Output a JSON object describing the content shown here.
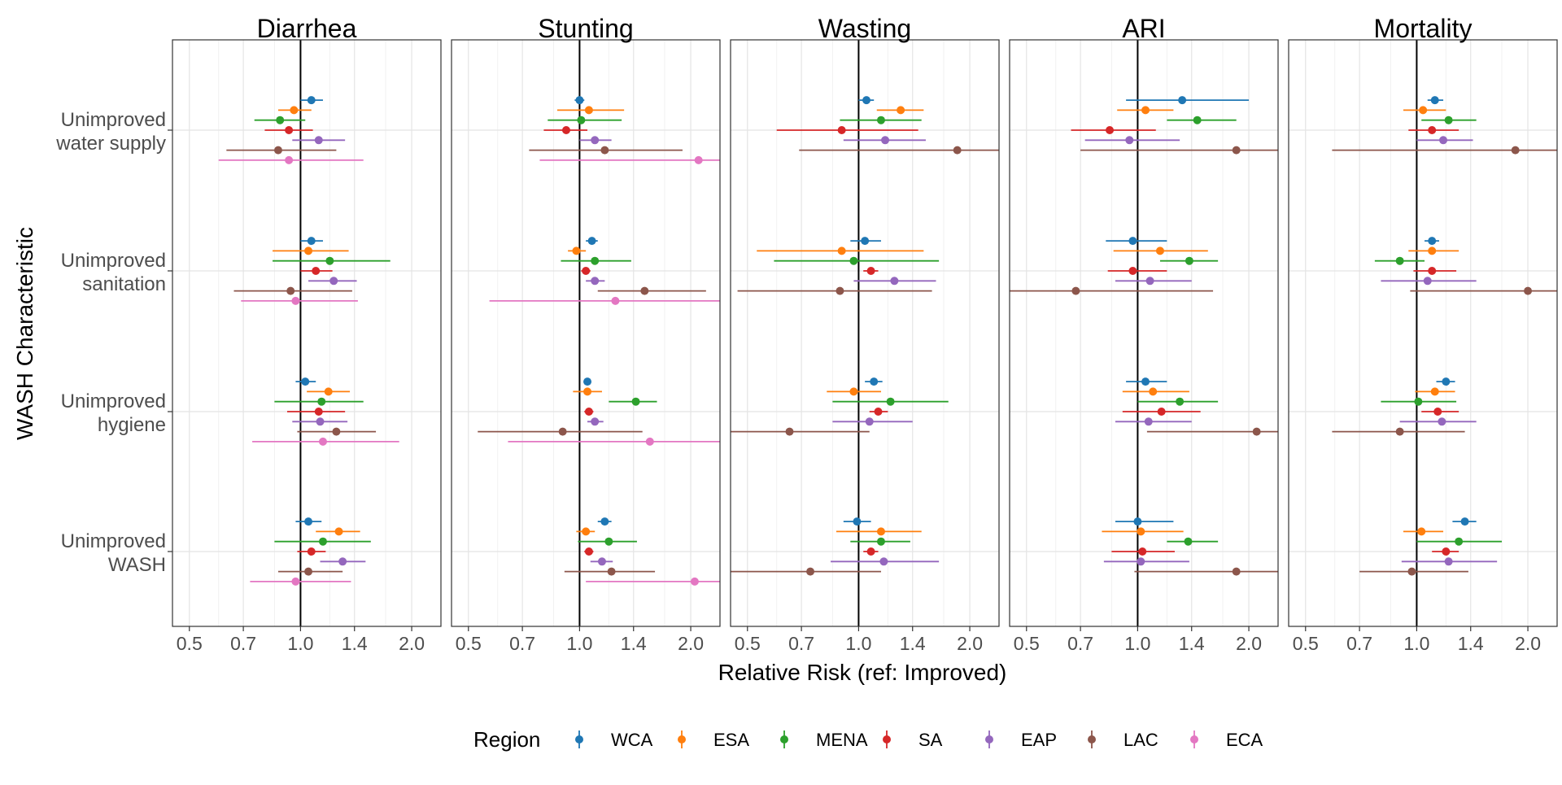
{
  "chart_data": {
    "type": "scatter",
    "subtype": "forest-plot-faceted",
    "xlabel": "Relative Risk (ref: Improved)",
    "ylabel": "WASH Characteristic",
    "x_scale": "log",
    "xlim": [
      0.45,
      2.4
    ],
    "x_ticks": [
      0.5,
      0.7,
      1.0,
      1.4,
      2.0
    ],
    "x_tick_labels": [
      "0.5",
      "0.7",
      "1.0",
      "1.4",
      "2.0"
    ],
    "reference_line": 1.0,
    "grid": true,
    "panels": [
      "Diarrhea",
      "Stunting",
      "Wasting",
      "ARI",
      "Mortality"
    ],
    "characteristics": [
      "Unimproved\nwater supply",
      "Unimproved\nsanitation",
      "Unimproved\nhygiene",
      "Unimproved\nWASH"
    ],
    "legend": {
      "title": "Region",
      "position": "bottom",
      "entries": [
        "WCA",
        "ESA",
        "MENA",
        "SA",
        "EAP",
        "LAC",
        "ECA"
      ]
    },
    "colors": {
      "WCA": "#1f77b4",
      "ESA": "#ff7f0e",
      "MENA": "#2ca02c",
      "SA": "#d62728",
      "EAP": "#9467bd",
      "LAC": "#8c564b",
      "ECA": "#e377c2"
    },
    "data": {
      "Diarrhea": [
        [
          [
            1.07,
            1.0,
            1.15
          ],
          [
            0.96,
            0.87,
            1.07
          ],
          [
            0.88,
            0.75,
            1.03
          ],
          [
            0.93,
            0.8,
            1.08
          ],
          [
            1.12,
            0.95,
            1.32
          ],
          [
            0.87,
            0.63,
            1.25
          ],
          [
            0.93,
            0.6,
            1.48
          ]
        ],
        [
          [
            1.07,
            1.0,
            1.15
          ],
          [
            1.05,
            0.84,
            1.35
          ],
          [
            1.2,
            0.84,
            1.75
          ],
          [
            1.1,
            1.0,
            1.22
          ],
          [
            1.23,
            1.05,
            1.42
          ],
          [
            0.94,
            0.66,
            1.38
          ],
          [
            0.97,
            0.69,
            1.43
          ]
        ],
        [
          [
            1.03,
            0.97,
            1.1
          ],
          [
            1.19,
            1.04,
            1.36
          ],
          [
            1.14,
            0.85,
            1.48
          ],
          [
            1.12,
            0.92,
            1.32
          ],
          [
            1.13,
            0.95,
            1.34
          ],
          [
            1.25,
            0.98,
            1.6
          ],
          [
            1.15,
            0.74,
            1.85
          ]
        ],
        [
          [
            1.05,
            0.97,
            1.14
          ],
          [
            1.27,
            1.1,
            1.45
          ],
          [
            1.15,
            0.85,
            1.55
          ],
          [
            1.07,
            0.98,
            1.17
          ],
          [
            1.3,
            1.13,
            1.5
          ],
          [
            1.05,
            0.87,
            1.3
          ],
          [
            0.97,
            0.73,
            1.37
          ]
        ]
      ],
      "Stunting": [
        [
          [
            1.0,
            0.97,
            1.03
          ],
          [
            1.06,
            0.87,
            1.32
          ],
          [
            1.01,
            0.82,
            1.3
          ],
          [
            0.92,
            0.8,
            1.05
          ],
          [
            1.1,
            1.0,
            1.22
          ],
          [
            1.17,
            0.73,
            1.9
          ],
          [
            2.1,
            0.78,
            2.4
          ]
        ],
        [
          [
            1.08,
            1.04,
            1.12
          ],
          [
            0.98,
            0.93,
            1.04
          ],
          [
            1.1,
            0.89,
            1.38
          ],
          [
            1.04,
            1.01,
            1.07
          ],
          [
            1.1,
            1.04,
            1.17
          ],
          [
            1.5,
            1.12,
            2.2
          ],
          [
            1.25,
            0.57,
            2.4
          ]
        ],
        [
          [
            1.05,
            1.03,
            1.07
          ],
          [
            1.05,
            0.96,
            1.15
          ],
          [
            1.42,
            1.2,
            1.62
          ],
          [
            1.06,
            1.03,
            1.09
          ],
          [
            1.1,
            1.05,
            1.16
          ],
          [
            0.9,
            0.53,
            1.48
          ],
          [
            1.55,
            0.64,
            2.4
          ]
        ],
        [
          [
            1.17,
            1.12,
            1.22
          ],
          [
            1.04,
            0.98,
            1.1
          ],
          [
            1.2,
            0.99,
            1.43
          ],
          [
            1.06,
            1.03,
            1.09
          ],
          [
            1.15,
            1.07,
            1.23
          ],
          [
            1.22,
            0.91,
            1.6
          ],
          [
            2.05,
            1.04,
            2.4
          ]
        ]
      ],
      "Wasting": [
        [
          [
            1.05,
            1.0,
            1.1
          ],
          [
            1.3,
            1.12,
            1.5
          ],
          [
            1.15,
            0.89,
            1.48
          ],
          [
            0.9,
            0.6,
            1.45
          ],
          [
            1.18,
            0.91,
            1.52
          ],
          [
            1.85,
            0.69,
            2.4
          ],
          null
        ],
        [
          [
            1.04,
            0.95,
            1.15
          ],
          [
            0.9,
            0.53,
            1.5
          ],
          [
            0.97,
            0.59,
            1.65
          ],
          [
            1.08,
            1.03,
            1.13
          ],
          [
            1.25,
            0.97,
            1.62
          ],
          [
            0.89,
            0.47,
            1.58
          ],
          null
        ],
        [
          [
            1.1,
            1.04,
            1.16
          ],
          [
            0.97,
            0.82,
            1.15
          ],
          [
            1.22,
            0.85,
            1.75
          ],
          [
            1.13,
            1.07,
            1.2
          ],
          [
            1.07,
            0.85,
            1.4
          ],
          [
            0.65,
            0.45,
            1.07
          ],
          null
        ],
        [
          [
            0.99,
            0.91,
            1.08
          ],
          [
            1.15,
            0.87,
            1.48
          ],
          [
            1.15,
            0.95,
            1.38
          ],
          [
            1.08,
            1.03,
            1.13
          ],
          [
            1.17,
            0.84,
            1.65
          ],
          [
            0.74,
            0.45,
            1.15
          ],
          null
        ]
      ],
      "ARI": [
        [
          [
            1.32,
            0.93,
            2.0
          ],
          [
            1.05,
            0.88,
            1.25
          ],
          [
            1.45,
            1.2,
            1.85
          ],
          [
            0.84,
            0.66,
            1.12
          ],
          [
            0.95,
            0.72,
            1.3
          ],
          [
            1.85,
            0.7,
            2.4
          ],
          null
        ],
        [
          [
            0.97,
            0.82,
            1.2
          ],
          [
            1.15,
            0.86,
            1.55
          ],
          [
            1.38,
            1.15,
            1.65
          ],
          [
            0.97,
            0.83,
            1.2
          ],
          [
            1.08,
            0.87,
            1.4
          ],
          [
            0.68,
            0.45,
            1.6
          ],
          null
        ],
        [
          [
            1.05,
            0.93,
            1.2
          ],
          [
            1.1,
            0.91,
            1.38
          ],
          [
            1.3,
            1.0,
            1.65
          ],
          [
            1.16,
            0.91,
            1.48
          ],
          [
            1.07,
            0.87,
            1.4
          ],
          [
            2.1,
            1.06,
            2.4
          ],
          null
        ],
        [
          [
            1.0,
            0.87,
            1.25
          ],
          [
            1.02,
            0.8,
            1.33
          ],
          [
            1.37,
            1.2,
            1.65
          ],
          [
            1.03,
            0.85,
            1.26
          ],
          [
            1.02,
            0.81,
            1.38
          ],
          [
            1.85,
            0.98,
            2.4
          ],
          null
        ]
      ],
      "Mortality": [
        [
          [
            1.12,
            1.07,
            1.18
          ],
          [
            1.04,
            0.92,
            1.2
          ],
          [
            1.22,
            1.03,
            1.45
          ],
          [
            1.1,
            0.95,
            1.3
          ],
          [
            1.18,
            1.0,
            1.42
          ],
          [
            1.85,
            0.59,
            2.4
          ],
          null
        ],
        [
          [
            1.1,
            1.05,
            1.15
          ],
          [
            1.1,
            0.95,
            1.3
          ],
          [
            0.9,
            0.77,
            1.05
          ],
          [
            1.1,
            0.98,
            1.28
          ],
          [
            1.07,
            0.8,
            1.45
          ],
          [
            2.0,
            0.96,
            2.4
          ],
          null
        ],
        [
          [
            1.2,
            1.13,
            1.27
          ],
          [
            1.12,
            0.99,
            1.27
          ],
          [
            1.01,
            0.8,
            1.28
          ],
          [
            1.14,
            1.03,
            1.3
          ],
          [
            1.17,
            0.9,
            1.45
          ],
          [
            0.9,
            0.59,
            1.35
          ],
          null
        ],
        [
          [
            1.35,
            1.25,
            1.45
          ],
          [
            1.03,
            0.92,
            1.18
          ],
          [
            1.3,
            1.0,
            1.7
          ],
          [
            1.2,
            1.1,
            1.3
          ],
          [
            1.22,
            0.91,
            1.65
          ],
          [
            0.97,
            0.7,
            1.38
          ],
          null
        ]
      ]
    }
  }
}
